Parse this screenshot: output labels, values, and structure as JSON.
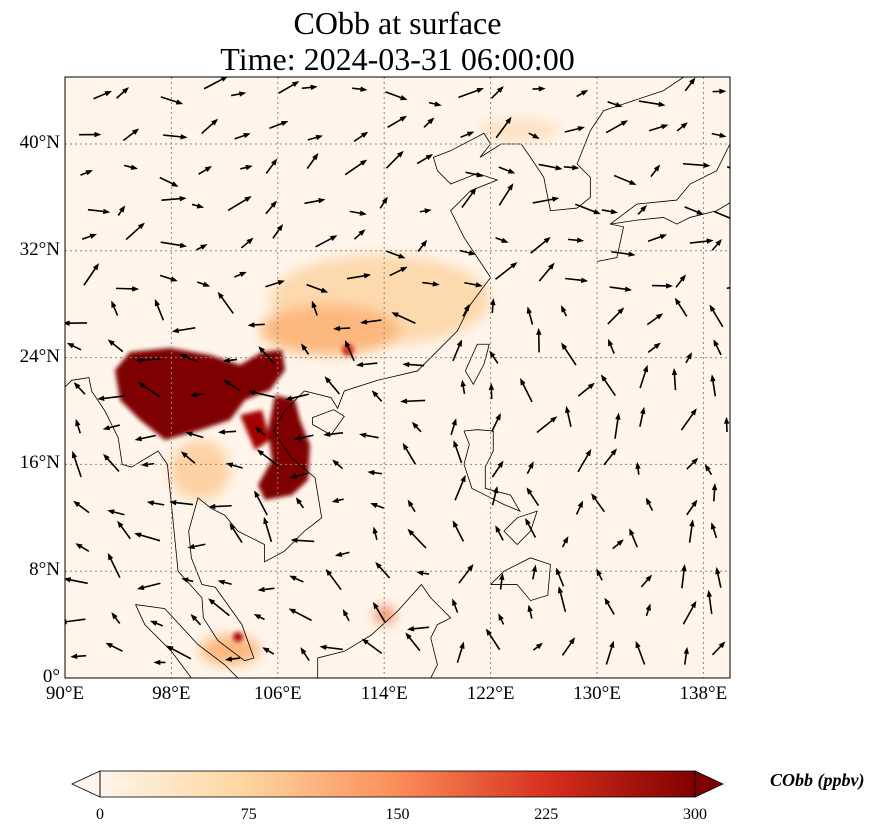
{
  "title": {
    "line1": "CObb at surface",
    "line2": "Time: 2024-03-31 06:00:00"
  },
  "axes": {
    "lon_ticks": [
      "90°E",
      "98°E",
      "106°E",
      "114°E",
      "122°E",
      "130°E",
      "138°E"
    ],
    "lat_ticks": [
      "0°",
      "8°N",
      "16°N",
      "24°N",
      "32°N",
      "40°N"
    ]
  },
  "colorbar": {
    "label": "CObb (ppbv)",
    "ticks": [
      "0",
      "75",
      "150",
      "225",
      "300"
    ],
    "range": [
      0,
      300
    ],
    "colors": [
      "#fff5eb",
      "#fdd49e",
      "#fc8d59",
      "#d7301f",
      "#7f0000"
    ]
  },
  "map": {
    "background": "#fff5eb",
    "lon_range": [
      90,
      140
    ],
    "lat_range": [
      0,
      45
    ]
  }
}
